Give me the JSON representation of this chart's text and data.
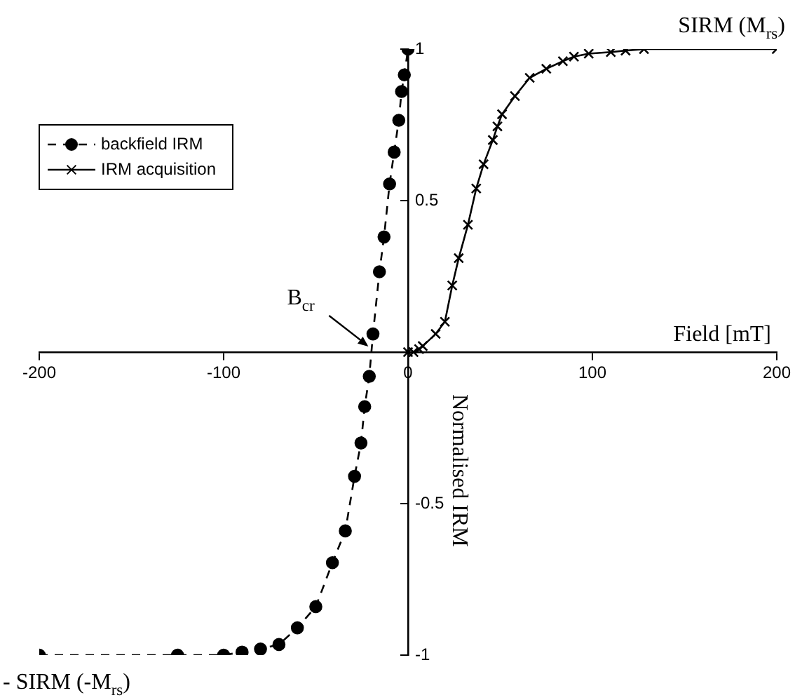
{
  "chart_data": {
    "type": "line",
    "xlabel": "Field [mT]",
    "ylabel": "Normalised IRM",
    "xlim": [
      -200,
      200
    ],
    "xticks": [
      -200,
      -100,
      0,
      100,
      200
    ],
    "ylim": [
      -1,
      1
    ],
    "yticks": [
      -1,
      -0.5,
      0.5,
      1
    ],
    "grid": false,
    "legend": "left",
    "series": [
      {
        "name": "backfield IRM",
        "type": "line",
        "color": "#000000",
        "marker": "circle",
        "line_style": "dashed",
        "x": [
          -200,
          -125,
          -100,
          -90,
          -80,
          -70,
          -60,
          -50,
          -41,
          -34,
          -29,
          -25.5,
          -23.5,
          -21,
          -19,
          -15.5,
          -13,
          -10,
          -7.5,
          -5,
          -3.5,
          -2,
          0
        ],
        "values": [
          -1,
          -1,
          -1,
          -0.99,
          -0.98,
          -0.965,
          -0.91,
          -0.84,
          -0.695,
          -0.59,
          -0.41,
          -0.3,
          -0.18,
          -0.08,
          0.06,
          0.265,
          0.38,
          0.555,
          0.66,
          0.765,
          0.86,
          0.915,
          1
        ]
      },
      {
        "name": "IRM acquisition",
        "type": "line",
        "color": "#000000",
        "marker": "cross",
        "line_style": "solid",
        "x": [
          0,
          3,
          6,
          8,
          15,
          20,
          24,
          27.5,
          32.5,
          37,
          41,
          46,
          48.5,
          51,
          58,
          66,
          75,
          84,
          90,
          98,
          110,
          118,
          128,
          200
        ],
        "values": [
          0,
          0,
          0.01,
          0.02,
          0.06,
          0.1,
          0.22,
          0.31,
          0.42,
          0.54,
          0.62,
          0.7,
          0.745,
          0.785,
          0.845,
          0.905,
          0.935,
          0.96,
          0.975,
          0.985,
          0.99,
          0.995,
          1,
          1
        ]
      }
    ],
    "annotations": [
      {
        "text": "SIRM (M$_{rs}$)",
        "x": 200,
        "y": 1
      },
      {
        "text": "- SIRM (-M$_{rs}$)",
        "x": -200,
        "y": -1
      },
      {
        "text": "B$_{cr}$",
        "x": -20,
        "y": 0
      }
    ]
  }
}
